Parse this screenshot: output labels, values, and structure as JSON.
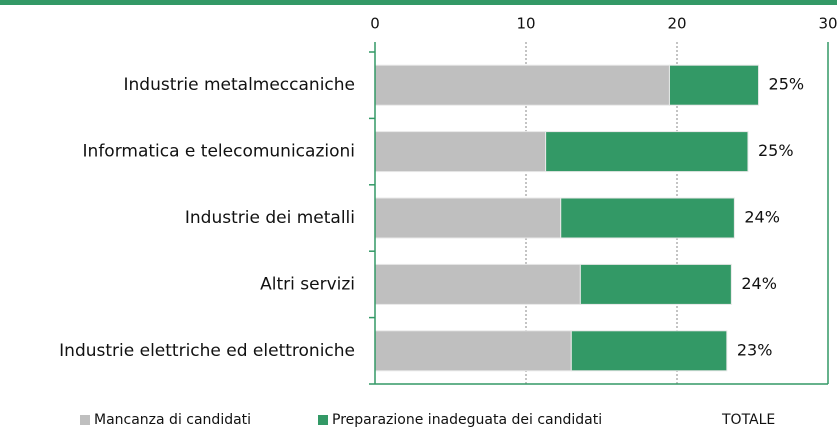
{
  "chart_data": {
    "type": "stacked-bar-horizontal",
    "categories": [
      "Industrie metalmeccaniche",
      "Informatica e telecomunicazioni",
      "Industrie dei metalli",
      "Altri servizi",
      "Industrie elettriche ed elettroniche"
    ],
    "series": [
      {
        "name": "Mancanza di candidati",
        "color": "#bfbfbf",
        "values": [
          19.5,
          11.3,
          12.3,
          13.6,
          13.0
        ]
      },
      {
        "name": "Preparazione inadeguata dei candidati",
        "color": "#339966",
        "values": [
          5.9,
          13.4,
          11.5,
          10.0,
          10.3
        ]
      }
    ],
    "totals": {
      "name": "TOTALE",
      "values": [
        25,
        25,
        24,
        24,
        23
      ],
      "value_labels": [
        "25%",
        "25%",
        "24%",
        "24%",
        "23%"
      ]
    },
    "xlim": [
      0,
      30
    ],
    "xticks": [
      0,
      10,
      20,
      30
    ],
    "grid": true,
    "frame_color": "#339966"
  }
}
